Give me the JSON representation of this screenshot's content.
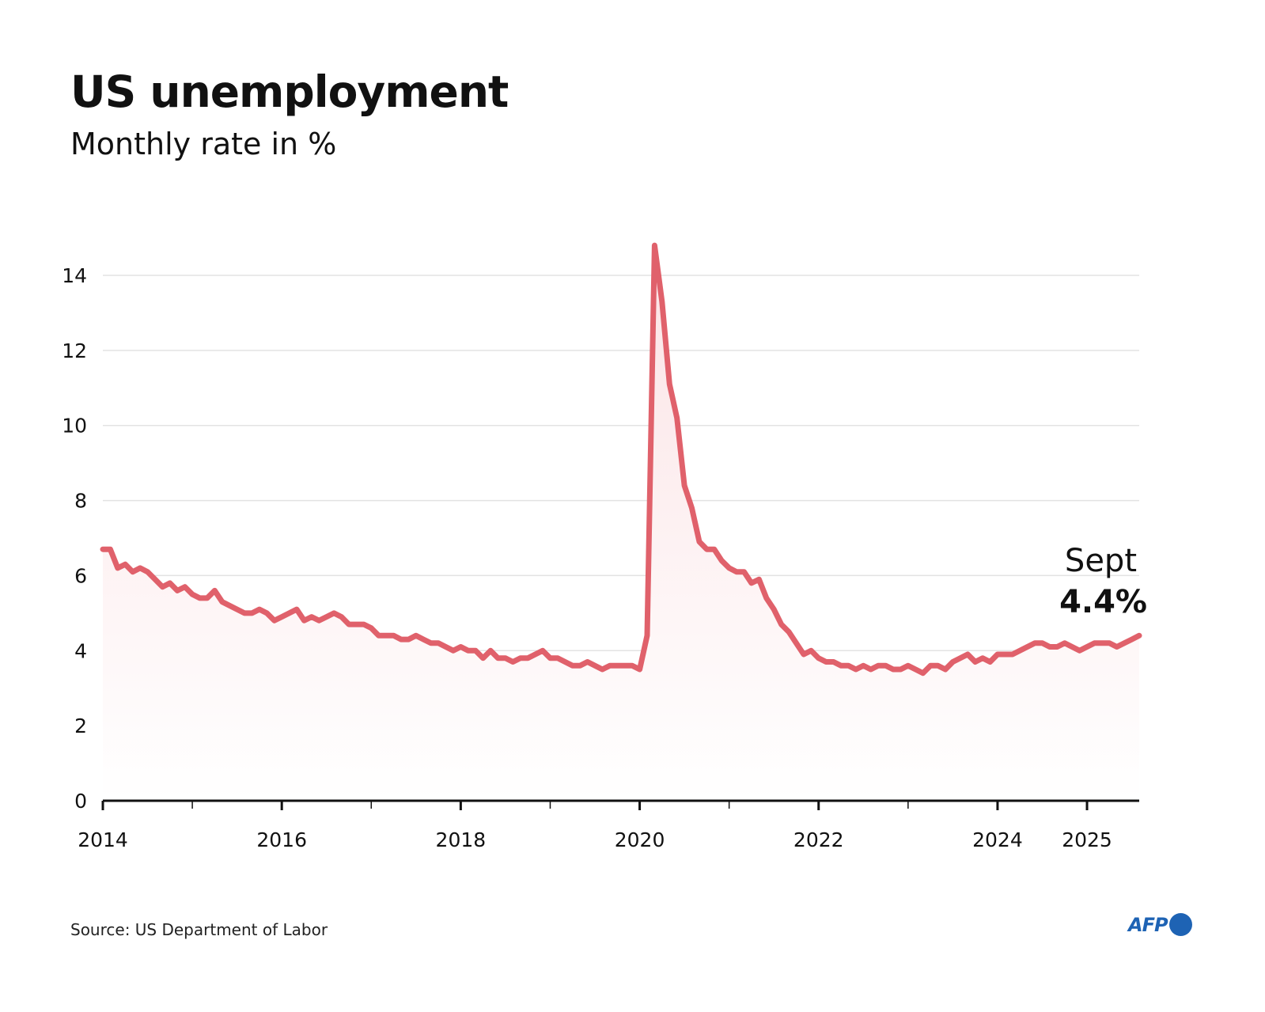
{
  "header": {
    "title": "US unemployment",
    "subtitle": "Monthly rate in %"
  },
  "footer": {
    "source": "Source: US Department of Labor",
    "logo": "AFP"
  },
  "colors": {
    "line": "#e0616b",
    "area_top": "#fbe3e5",
    "grid": "#e3e3e3",
    "axis": "#111111",
    "brand": "#1e63b4"
  },
  "chart_data": {
    "type": "area",
    "title": "US unemployment",
    "subtitle": "Monthly rate in %",
    "x_start": "2014-01",
    "x_ticks": [
      "2014",
      "2016",
      "2018",
      "2020",
      "2022",
      "2024",
      "2025"
    ],
    "y_ticks": [
      0,
      2,
      4,
      6,
      8,
      10,
      12,
      14
    ],
    "ylim": [
      0,
      15
    ],
    "grid": true,
    "annotation": {
      "label": "Sept",
      "value": "4.4%"
    },
    "series": [
      {
        "values": [
          6.7,
          6.7,
          6.2,
          6.3,
          6.1,
          6.2,
          6.1,
          5.9,
          5.7,
          5.8,
          5.6,
          5.7,
          5.5,
          5.4,
          5.4,
          5.6,
          5.3,
          5.2,
          5.1,
          5.0,
          5.0,
          5.1,
          5.0,
          4.8,
          4.9,
          5.0,
          5.1,
          4.8,
          4.9,
          4.8,
          4.9,
          5.0,
          4.9,
          4.7,
          4.7,
          4.7,
          4.6,
          4.4,
          4.4,
          4.4,
          4.3,
          4.3,
          4.4,
          4.3,
          4.2,
          4.2,
          4.1,
          4.0,
          4.1,
          4.0,
          4.0,
          3.8,
          4.0,
          3.8,
          3.8,
          3.7,
          3.8,
          3.8,
          3.9,
          4.0,
          3.8,
          3.8,
          3.7,
          3.6,
          3.6,
          3.7,
          3.6,
          3.5,
          3.6,
          3.6,
          3.6,
          3.6,
          3.5,
          4.4,
          14.8,
          13.3,
          11.1,
          10.2,
          8.4,
          7.8,
          6.9,
          6.7,
          6.7,
          6.4,
          6.2,
          6.1,
          6.1,
          5.8,
          5.9,
          5.4,
          5.1,
          4.7,
          4.5,
          4.2,
          3.9,
          4.0,
          3.8,
          3.7,
          3.7,
          3.6,
          3.6,
          3.5,
          3.6,
          3.5,
          3.6,
          3.6,
          3.5,
          3.5,
          3.6,
          3.5,
          3.4,
          3.6,
          3.6,
          3.5,
          3.7,
          3.8,
          3.9,
          3.7,
          3.8,
          3.7,
          3.9,
          3.9,
          3.9,
          4.0,
          4.1,
          4.2,
          4.2,
          4.1,
          4.1,
          4.2,
          4.1,
          4.0,
          4.1,
          4.2,
          4.2,
          4.2,
          4.1,
          4.2,
          4.3,
          4.4
        ]
      }
    ]
  }
}
